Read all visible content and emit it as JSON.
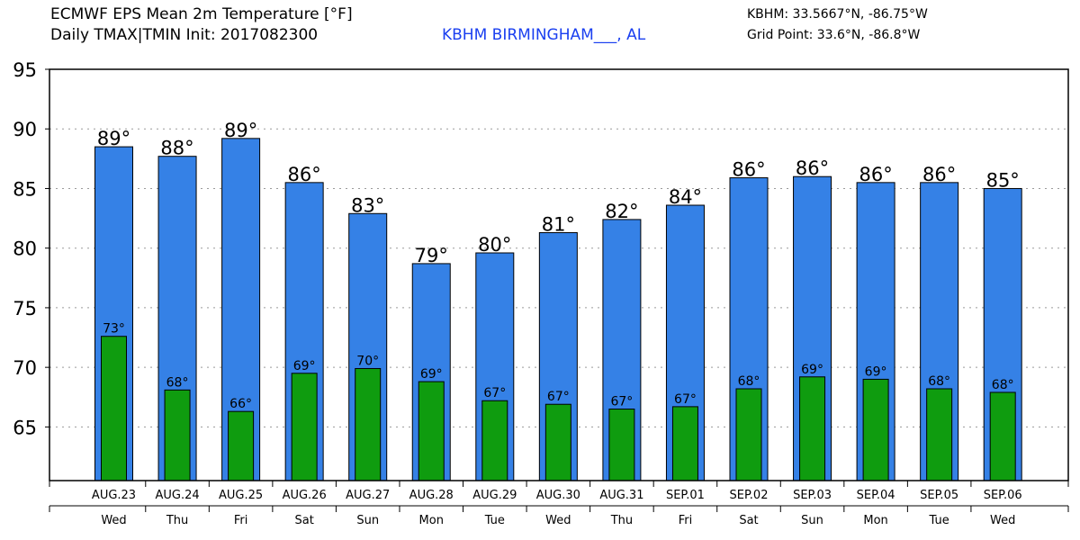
{
  "header": {
    "title_line1": "ECMWF EPS Mean 2m Temperature [°F]",
    "title_line2": "Daily TMAX|TMIN Init: 2017082300",
    "station": "KBHM BIRMINGHAM___, AL",
    "station_coords": "KBHM: 33.5667°N, -86.75°W",
    "grid_point": "Grid Point: 33.6°N, -86.8°W"
  },
  "colors": {
    "tmax": "#3581e6",
    "tmin": "#0f9c0f",
    "station_text": "#1a3ff0"
  },
  "chart_data": {
    "type": "bar",
    "categories": [
      "AUG.23",
      "AUG.24",
      "AUG.25",
      "AUG.26",
      "AUG.27",
      "AUG.28",
      "AUG.29",
      "AUG.30",
      "AUG.31",
      "SEP.01",
      "SEP.02",
      "SEP.03",
      "SEP.04",
      "SEP.05",
      "SEP.06"
    ],
    "weekdays": [
      "Wed",
      "Thu",
      "Fri",
      "Sat",
      "Sun",
      "Mon",
      "Tue",
      "Wed",
      "Thu",
      "Fri",
      "Sat",
      "Sun",
      "Mon",
      "Tue",
      "Wed"
    ],
    "series": [
      {
        "key": "tmax",
        "values": [
          88.5,
          87.7,
          89.2,
          85.5,
          82.9,
          78.7,
          79.6,
          81.3,
          82.4,
          83.6,
          85.9,
          86.0,
          85.5,
          85.5,
          85.0
        ],
        "labels": [
          "89°",
          "88°",
          "89°",
          "86°",
          "83°",
          "79°",
          "80°",
          "81°",
          "82°",
          "84°",
          "86°",
          "86°",
          "86°",
          "86°",
          "85°"
        ]
      },
      {
        "key": "tmin",
        "values": [
          72.6,
          68.1,
          66.3,
          69.5,
          69.9,
          68.8,
          67.2,
          66.9,
          66.5,
          66.7,
          68.2,
          69.2,
          69.0,
          68.2,
          67.9
        ],
        "labels": [
          "73°",
          "68°",
          "66°",
          "69°",
          "70°",
          "69°",
          "67°",
          "67°",
          "67°",
          "67°",
          "68°",
          "69°",
          "69°",
          "68°",
          "68°"
        ]
      }
    ],
    "yticks": [
      "65",
      "70",
      "75",
      "80",
      "85",
      "90",
      "95"
    ],
    "ylim": [
      60.5,
      95
    ],
    "grid": true
  }
}
